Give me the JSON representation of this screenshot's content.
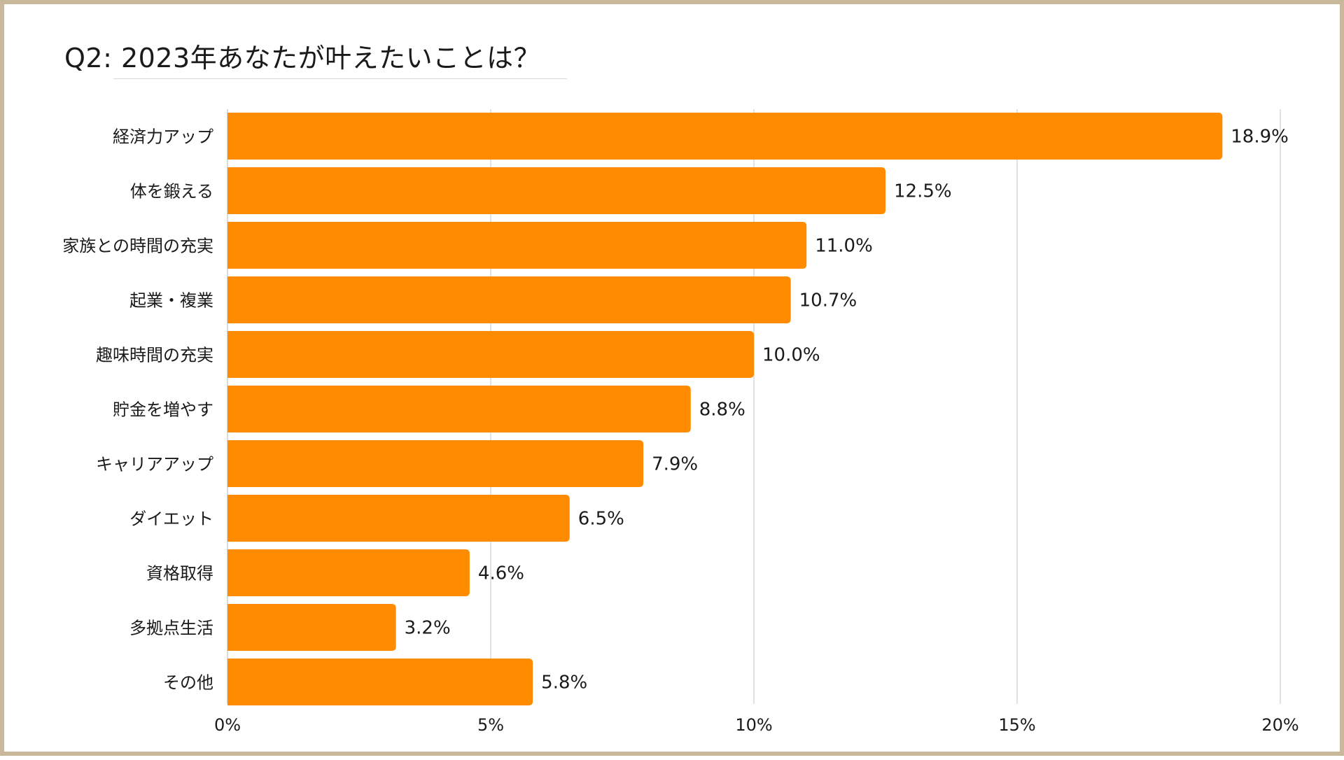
{
  "chart_data": {
    "type": "bar",
    "orientation": "horizontal",
    "title": "Q2: 2023年あなたが叶えたいことは？",
    "categories": [
      "経済力アップ",
      "体を鍛える",
      "家族との時間の充実",
      "起業・複業",
      "趣味時間の充実",
      "貯金を増やす",
      "キャリアアップ",
      "ダイエット",
      "資格取得",
      "多拠点生活",
      "その他"
    ],
    "values": [
      18.9,
      12.5,
      11.0,
      10.7,
      10.0,
      8.8,
      7.9,
      6.5,
      4.6,
      3.2,
      5.8
    ],
    "value_labels": [
      "18.9%",
      "12.5%",
      "11.0%",
      "10.7%",
      "10.0%",
      "8.8%",
      "7.9%",
      "6.5%",
      "4.6%",
      "3.2%",
      "5.8%"
    ],
    "xlim": [
      0,
      20
    ],
    "x_ticks": [
      0,
      5,
      10,
      15,
      20
    ],
    "x_tick_labels": [
      "0%",
      "5%",
      "10%",
      "15%",
      "20%"
    ],
    "grid": true,
    "legend": "none",
    "bar_color": "#ff8c00",
    "grid_color": "#d9d9d9",
    "frame_color": "#c9b89c"
  }
}
